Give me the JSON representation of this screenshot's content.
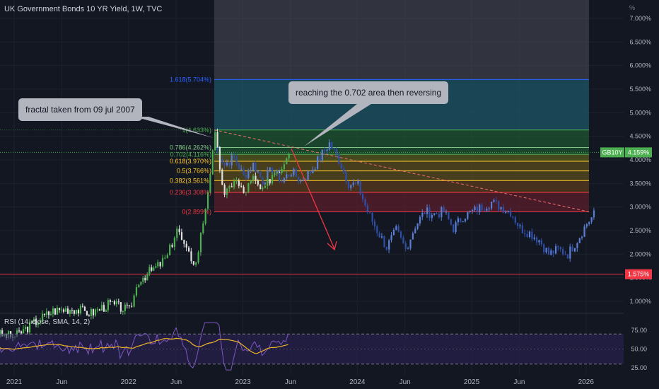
{
  "header": {
    "title": "UK Government Bonds 10 YR Yield, 1W, TVC",
    "unit": "%"
  },
  "chart_data": {
    "type": "candlestick",
    "y_axis": {
      "ticks": [
        "7.000%",
        "6.500%",
        "6.000%",
        "5.500%",
        "5.000%",
        "4.500%",
        "4.000%",
        "3.500%",
        "3.000%",
        "2.500%",
        "2.000%",
        "1.500%",
        "1.000%"
      ],
      "tick_values": [
        7.0,
        6.5,
        6.0,
        5.5,
        5.0,
        4.5,
        4.0,
        3.5,
        3.0,
        2.5,
        2.0,
        1.5,
        1.0
      ]
    },
    "x_axis": {
      "ticks": [
        "2021",
        "Jun",
        "2022",
        "Jun",
        "2023",
        "Jun",
        "2024",
        "Jun",
        "2025",
        "Jun",
        "2026"
      ],
      "tick_dates": [
        "2021-01",
        "2021-06",
        "2022-01",
        "2022-06",
        "2023-01",
        "2023-06",
        "2024-01",
        "2024-06",
        "2025-01",
        "2025-06",
        "2026-01"
      ]
    },
    "price_label": {
      "symbol": "GB10Y",
      "value": "4.159%",
      "level": 4.159
    },
    "support_label": {
      "value": "1.575%",
      "level": 1.575
    },
    "fibonacci": [
      {
        "label": "1.618(5.704%)",
        "ratio": 1.618,
        "level": 5.704,
        "color": "#2962ff"
      },
      {
        "label": "1(4.633%)",
        "ratio": 1,
        "level": 4.633,
        "color": "#4caf50"
      },
      {
        "label": "0.786(4.262%)",
        "ratio": 0.786,
        "level": 4.262,
        "color": "#81c784"
      },
      {
        "label": "0.702(4.116%)",
        "ratio": 0.702,
        "level": 4.116,
        "color": "#4caf50"
      },
      {
        "label": "0.618(3.970%)",
        "ratio": 0.618,
        "level": 3.97,
        "color": "#ffca28"
      },
      {
        "label": "0.5(3.766%)",
        "ratio": 0.5,
        "level": 3.766,
        "color": "#ffca28"
      },
      {
        "label": "0.382(3.561%)",
        "ratio": 0.382,
        "level": 3.561,
        "color": "#ffca28"
      },
      {
        "label": "0.236(3.308%)",
        "ratio": 0.236,
        "level": 3.308,
        "color": "#f23645"
      },
      {
        "label": "0(2.899%)",
        "ratio": 0,
        "level": 2.899,
        "color": "#f23645"
      }
    ],
    "actual_candles": [
      {
        "date": "2020-11",
        "close": 0.3
      },
      {
        "date": "2021-01",
        "close": 0.25
      },
      {
        "date": "2021-03",
        "close": 0.55
      },
      {
        "date": "2021-05",
        "close": 0.8
      },
      {
        "date": "2021-07",
        "close": 0.85
      },
      {
        "date": "2021-09",
        "close": 0.75
      },
      {
        "date": "2021-11",
        "close": 0.95
      },
      {
        "date": "2022-01",
        "close": 0.8
      },
      {
        "date": "2022-02",
        "close": 1.45
      },
      {
        "date": "2022-04",
        "close": 1.75
      },
      {
        "date": "2022-05",
        "close": 1.95
      },
      {
        "date": "2022-06",
        "close": 2.55
      },
      {
        "date": "2022-07",
        "close": 2.05
      },
      {
        "date": "2022-08",
        "close": 1.8
      },
      {
        "date": "2022-09",
        "close": 3.0
      },
      {
        "date": "2022-10",
        "close": 4.5
      },
      {
        "date": "2022-11",
        "close": 3.2
      },
      {
        "date": "2022-12",
        "close": 3.6
      },
      {
        "date": "2023-01",
        "close": 3.3
      },
      {
        "date": "2023-02",
        "close": 3.6
      },
      {
        "date": "2023-03",
        "close": 3.3
      },
      {
        "date": "2023-04",
        "close": 3.7
      },
      {
        "date": "2023-05",
        "close": 3.85
      },
      {
        "date": "2023-06",
        "close": 4.35
      }
    ],
    "projected_path": [
      {
        "date": "2022-10",
        "close": 4.3
      },
      {
        "date": "2022-11",
        "close": 3.9
      },
      {
        "date": "2022-12",
        "close": 4.05
      },
      {
        "date": "2023-01",
        "close": 3.65
      },
      {
        "date": "2023-02",
        "close": 3.9
      },
      {
        "date": "2023-03",
        "close": 3.55
      },
      {
        "date": "2023-04",
        "close": 3.8
      },
      {
        "date": "2023-05",
        "close": 3.55
      },
      {
        "date": "2023-06",
        "close": 3.75
      },
      {
        "date": "2023-07",
        "close": 3.55
      },
      {
        "date": "2023-08",
        "close": 3.75
      },
      {
        "date": "2023-09",
        "close": 4.05
      },
      {
        "date": "2023-10",
        "close": 4.35
      },
      {
        "date": "2023-11",
        "close": 4.0
      },
      {
        "date": "2023-12",
        "close": 3.5
      },
      {
        "date": "2024-01",
        "close": 3.45
      },
      {
        "date": "2024-02",
        "close": 2.9
      },
      {
        "date": "2024-03",
        "close": 2.5
      },
      {
        "date": "2024-04",
        "close": 2.15
      },
      {
        "date": "2024-05",
        "close": 2.5
      },
      {
        "date": "2024-06",
        "close": 2.1
      },
      {
        "date": "2024-07",
        "close": 2.6
      },
      {
        "date": "2024-08",
        "close": 2.9
      },
      {
        "date": "2024-09",
        "close": 2.85
      },
      {
        "date": "2024-10",
        "close": 2.9
      },
      {
        "date": "2024-11",
        "close": 2.55
      },
      {
        "date": "2024-12",
        "close": 2.8
      },
      {
        "date": "2025-01",
        "close": 2.9
      },
      {
        "date": "2025-02",
        "close": 3.0
      },
      {
        "date": "2025-03",
        "close": 3.1
      },
      {
        "date": "2025-04",
        "close": 3.0
      },
      {
        "date": "2025-05",
        "close": 2.9
      },
      {
        "date": "2025-06",
        "close": 2.55
      },
      {
        "date": "2025-07",
        "close": 2.45
      },
      {
        "date": "2025-08",
        "close": 2.3
      },
      {
        "date": "2025-09",
        "close": 2.0
      },
      {
        "date": "2025-10",
        "close": 2.1
      },
      {
        "date": "2025-11",
        "close": 2.0
      },
      {
        "date": "2025-12",
        "close": 2.3
      },
      {
        "date": "2026-01",
        "close": 2.65
      },
      {
        "date": "2026-02",
        "close": 2.9
      }
    ],
    "rsi": {
      "label": "RSI (14, close, SMA, 14, 2)",
      "ticks": [
        "75.00",
        "50.00",
        "25.00"
      ],
      "tick_values": [
        75,
        50,
        25
      ],
      "bands": [
        70,
        30
      ]
    }
  },
  "annotations": {
    "fractal_note": "fractal taken from 09 jul 2007",
    "reversal_note": "reaching the 0.702 area then reversing"
  }
}
